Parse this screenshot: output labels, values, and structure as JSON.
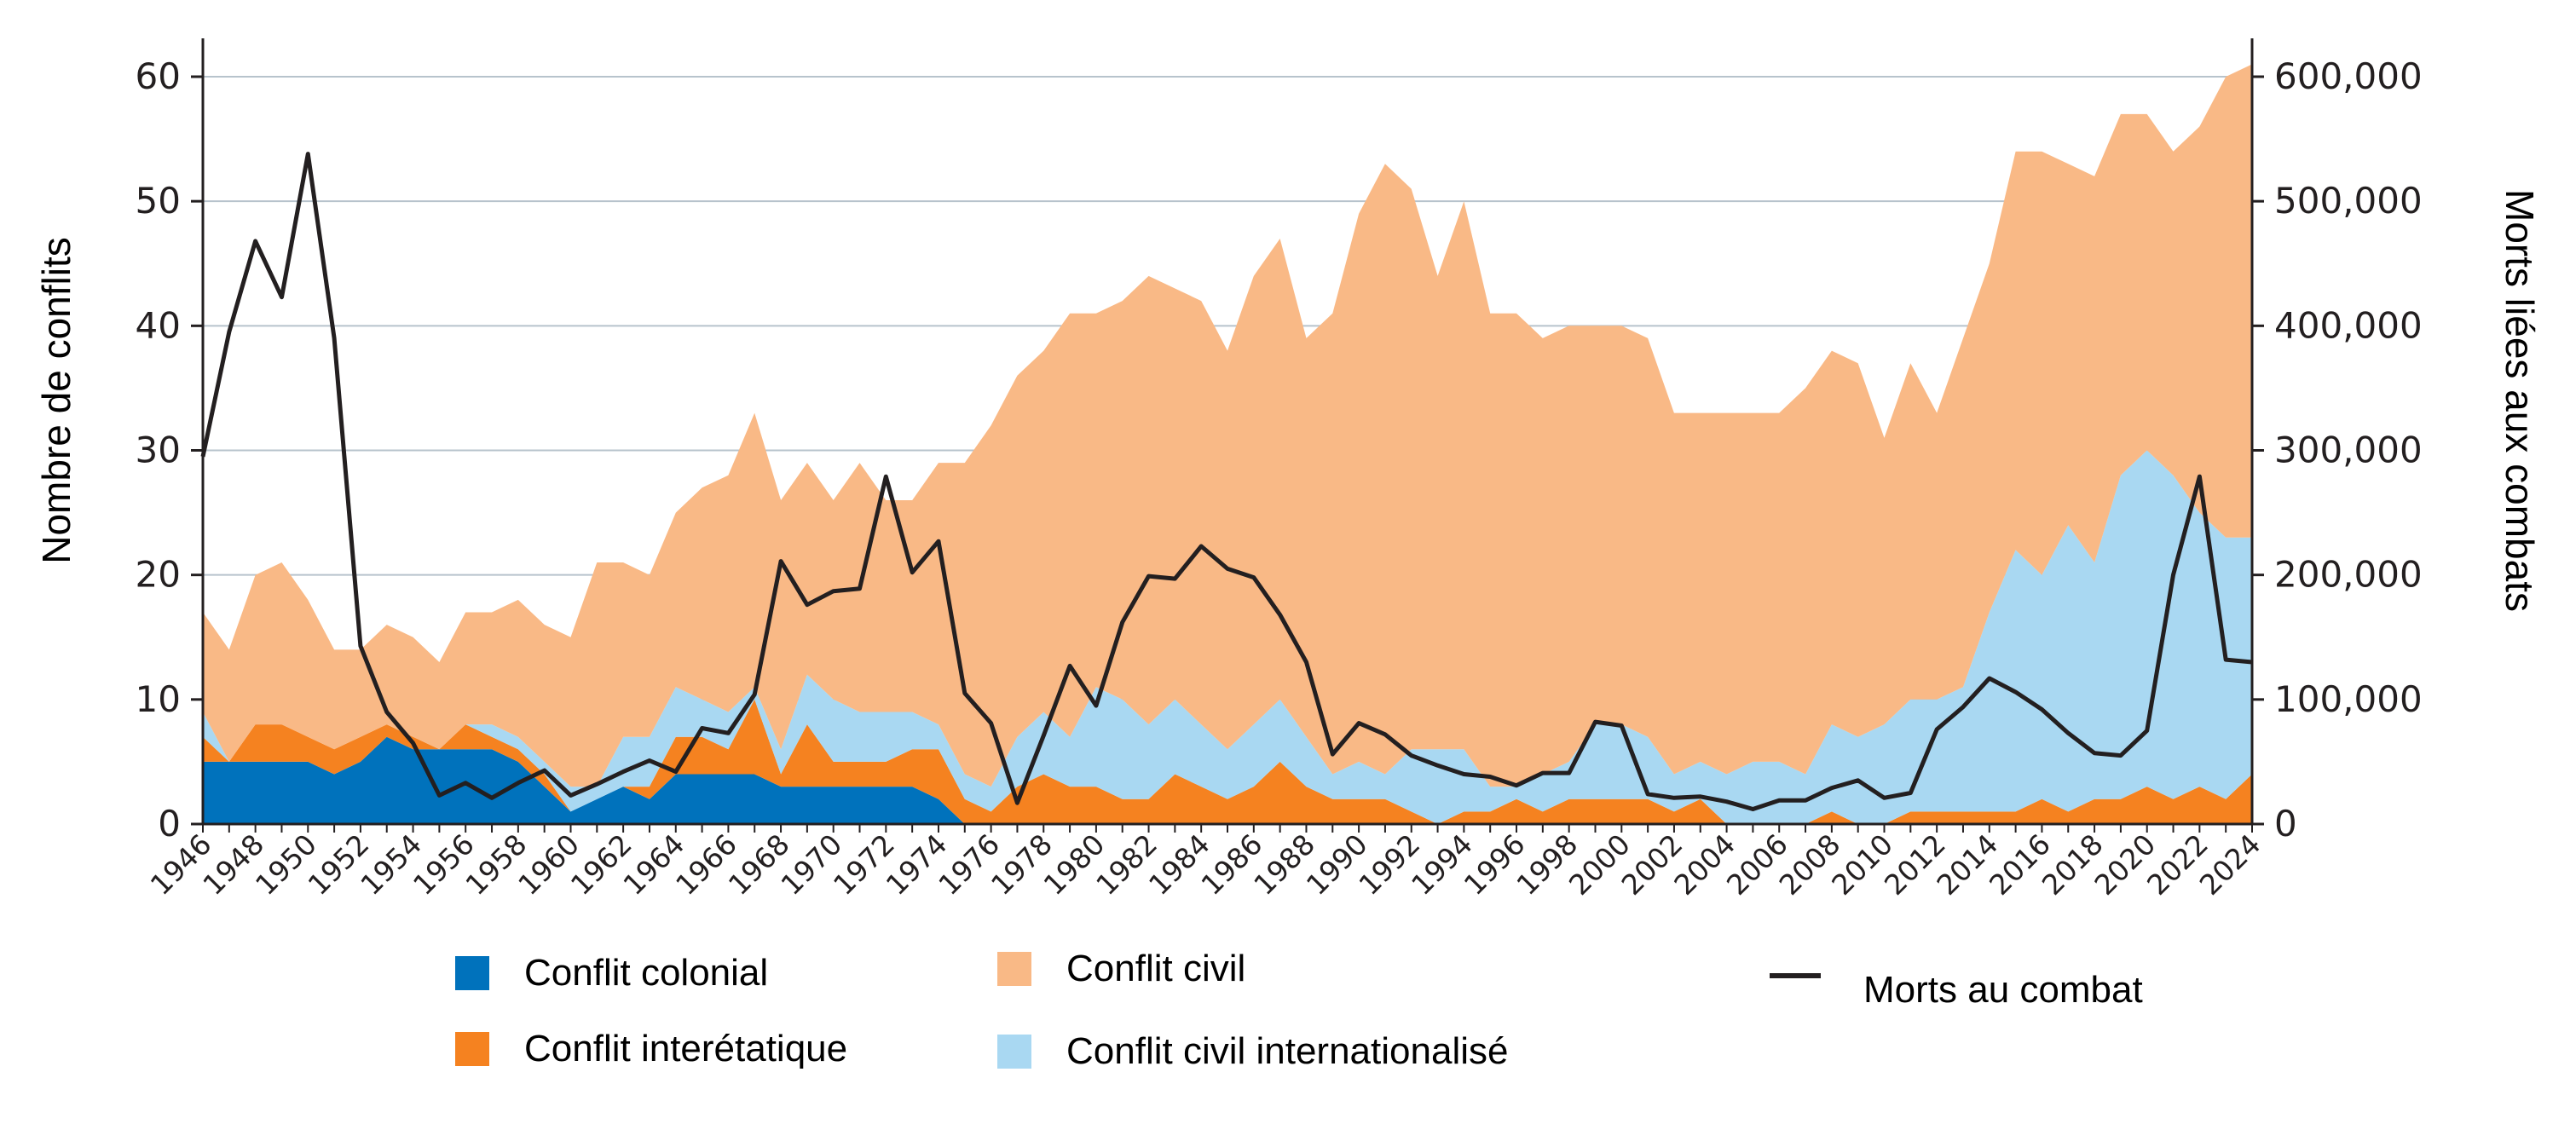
{
  "chart_data": {
    "type": "area",
    "stacking": "stacked",
    "x": [
      1946,
      1947,
      1948,
      1949,
      1950,
      1951,
      1952,
      1953,
      1954,
      1955,
      1956,
      1957,
      1958,
      1959,
      1960,
      1961,
      1962,
      1963,
      1964,
      1965,
      1966,
      1967,
      1968,
      1969,
      1970,
      1971,
      1972,
      1973,
      1974,
      1975,
      1976,
      1977,
      1978,
      1979,
      1980,
      1981,
      1982,
      1983,
      1984,
      1985,
      1986,
      1987,
      1988,
      1989,
      1990,
      1991,
      1992,
      1993,
      1994,
      1995,
      1996,
      1997,
      1998,
      1999,
      2000,
      2001,
      2002,
      2003,
      2004,
      2005,
      2006,
      2007,
      2008,
      2009,
      2010,
      2011,
      2012,
      2013,
      2014,
      2015,
      2016,
      2017,
      2018,
      2019,
      2020,
      2021,
      2022,
      2023,
      2024
    ],
    "x_tick_labels": [
      "1946",
      "1948",
      "1950",
      "1952",
      "1954",
      "1956",
      "1958",
      "1960",
      "1962",
      "1964",
      "1966",
      "1968",
      "1970",
      "1972",
      "1974",
      "1976",
      "1978",
      "1980",
      "1982",
      "1984",
      "1986",
      "1988",
      "1990",
      "1992",
      "1994",
      "1996",
      "1998",
      "2000",
      "2002",
      "2004",
      "2006",
      "2008",
      "2010",
      "2012",
      "2014",
      "2016",
      "2018",
      "2020",
      "2022",
      "2024"
    ],
    "y_left": {
      "label": "Nombre de conflits",
      "ticks": [
        "0",
        "10",
        "20",
        "30",
        "40",
        "50",
        "60"
      ],
      "range": [
        0,
        60
      ]
    },
    "y_right": {
      "label": "Morts liées aux combats",
      "ticks": [
        "0",
        "100,000",
        "200,000",
        "300,000",
        "400,000",
        "500,000",
        "600,000"
      ],
      "range": [
        0,
        600000
      ]
    },
    "grid": "horizontal",
    "legend_position": "bottom",
    "series": [
      {
        "name": "Conflit colonial",
        "kind": "area",
        "color": "#0072bc",
        "values": [
          5,
          5,
          5,
          5,
          5,
          4,
          5,
          7,
          6,
          6,
          6,
          6,
          5,
          3,
          1,
          2,
          3,
          2,
          4,
          4,
          4,
          4,
          3,
          3,
          3,
          3,
          3,
          3,
          2,
          0,
          0,
          0,
          0,
          0,
          0,
          0,
          0,
          0,
          0,
          0,
          0,
          0,
          0,
          0,
          0,
          0,
          0,
          0,
          0,
          0,
          0,
          0,
          0,
          0,
          0,
          0,
          0,
          0,
          0,
          0,
          0,
          0,
          0,
          0,
          0,
          0,
          0,
          0,
          0,
          0,
          0,
          0,
          0,
          0,
          0,
          0,
          0,
          0,
          0
        ]
      },
      {
        "name": "Conflit interétatique",
        "kind": "area",
        "color": "#f58220",
        "values": [
          2,
          0,
          3,
          3,
          2,
          2,
          2,
          1,
          1,
          0,
          2,
          1,
          1,
          1,
          0,
          0,
          0,
          1,
          3,
          3,
          2,
          6,
          1,
          5,
          2,
          2,
          2,
          3,
          4,
          2,
          1,
          3,
          4,
          3,
          3,
          2,
          2,
          4,
          3,
          2,
          3,
          5,
          3,
          2,
          2,
          2,
          1,
          0,
          1,
          1,
          2,
          1,
          2,
          2,
          2,
          2,
          1,
          2,
          0,
          0,
          0,
          0,
          1,
          0,
          0,
          1,
          1,
          1,
          1,
          1,
          2,
          1,
          2,
          2,
          3,
          2,
          3,
          2,
          4
        ]
      },
      {
        "name": "Conflit civil internationalisé",
        "kind": "area",
        "color": "#a9d8f2",
        "values": [
          2,
          0,
          0,
          0,
          0,
          0,
          0,
          0,
          0,
          0,
          0,
          1,
          1,
          1,
          2,
          1,
          4,
          4,
          4,
          3,
          3,
          1,
          2,
          4,
          5,
          4,
          4,
          3,
          2,
          2,
          2,
          4,
          5,
          4,
          8,
          8,
          6,
          6,
          5,
          4,
          5,
          5,
          4,
          2,
          3,
          2,
          5,
          6,
          5,
          2,
          1,
          3,
          3,
          6,
          6,
          5,
          3,
          3,
          4,
          5,
          5,
          4,
          7,
          7,
          8,
          9,
          9,
          10,
          16,
          21,
          18,
          23,
          19,
          26,
          27,
          26,
          22,
          21,
          19
        ]
      },
      {
        "name": "Conflit civil",
        "kind": "area",
        "color": "#f9b986",
        "values": [
          8,
          9,
          12,
          13,
          11,
          8,
          7,
          8,
          8,
          7,
          9,
          9,
          11,
          11,
          12,
          18,
          14,
          13,
          14,
          17,
          19,
          22,
          20,
          17,
          16,
          20,
          17,
          17,
          21,
          25,
          29,
          29,
          29,
          34,
          30,
          32,
          36,
          33,
          34,
          32,
          36,
          37,
          32,
          37,
          44,
          49,
          45,
          38,
          44,
          38,
          38,
          35,
          35,
          32,
          32,
          32,
          29,
          28,
          29,
          28,
          28,
          31,
          30,
          30,
          23,
          27,
          23,
          28,
          28,
          32,
          34,
          29,
          31,
          29,
          27,
          26,
          31,
          37,
          38
        ]
      },
      {
        "name": "Morts au combat",
        "kind": "line",
        "axis": "right",
        "color": "#231f20",
        "values": [
          295000,
          395000,
          468000,
          423000,
          538000,
          390000,
          143000,
          90000,
          65000,
          23000,
          33000,
          21000,
          33000,
          43000,
          23000,
          32000,
          42000,
          51000,
          42000,
          77000,
          73000,
          104000,
          211000,
          176000,
          187000,
          189000,
          279000,
          202000,
          227000,
          105000,
          81000,
          17000,
          71000,
          127000,
          95000,
          162000,
          199000,
          197000,
          223000,
          205000,
          198000,
          168000,
          130000,
          56000,
          81000,
          72000,
          55000,
          47000,
          40000,
          38000,
          31000,
          41000,
          41000,
          82000,
          79000,
          24000,
          21000,
          22000,
          18000,
          12000,
          19000,
          19000,
          29000,
          35000,
          21000,
          25000,
          76000,
          94000,
          117000,
          106000,
          92000,
          73000,
          57000,
          55000,
          75000,
          200000,
          279000,
          132000,
          130000
        ]
      }
    ]
  },
  "legend": [
    {
      "label": "Conflit colonial",
      "color": "#0072bc",
      "kind": "swatch"
    },
    {
      "label": "Conflit interétatique",
      "color": "#f58220",
      "kind": "swatch"
    },
    {
      "label": "Conflit civil",
      "color": "#f9b986",
      "kind": "swatch"
    },
    {
      "label": "Conflit civil internationalisé",
      "color": "#a9d8f2",
      "kind": "swatch"
    },
    {
      "label": "Morts au combat",
      "color": "#231f20",
      "kind": "line"
    }
  ]
}
